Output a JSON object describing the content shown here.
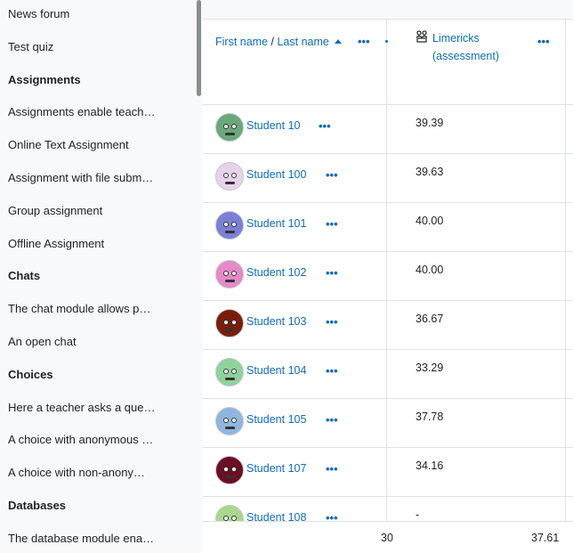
{
  "sidebar": {
    "items": [
      {
        "label": "News forum",
        "section": false
      },
      {
        "label": "Test quiz",
        "section": false
      },
      {
        "label": "Assignments",
        "section": true
      },
      {
        "label": "Assignments enable teach…",
        "section": false
      },
      {
        "label": "Online Text Assignment",
        "section": false
      },
      {
        "label": "Assignment with file subm…",
        "section": false
      },
      {
        "label": "Group assignment",
        "section": false
      },
      {
        "label": "Offline Assignment",
        "section": false
      },
      {
        "label": "Chats",
        "section": true
      },
      {
        "label": "The chat module allows p…",
        "section": false
      },
      {
        "label": "An open chat",
        "section": false
      },
      {
        "label": "Choices",
        "section": true
      },
      {
        "label": "Here a teacher asks a que…",
        "section": false
      },
      {
        "label": "A choice with anonymous …",
        "section": false
      },
      {
        "label": "A choice with non-anony…",
        "section": false
      },
      {
        "label": "Databases",
        "section": true
      },
      {
        "label": "The database module ena…",
        "section": false
      }
    ]
  },
  "table": {
    "name_header": {
      "first": "First name",
      "separator": " / ",
      "last": "Last name"
    },
    "item_header": {
      "name": "Limericks (assessment)",
      "icon": "workshop-icon"
    },
    "rows": [
      {
        "student": "Student 10",
        "grade": "39.39",
        "avatar_color": "#6aa87a"
      },
      {
        "student": "Student 100",
        "grade": "39.63",
        "avatar_color": "#e6d3ea"
      },
      {
        "student": "Student 101",
        "grade": "40.00",
        "avatar_color": "#7b7fd6"
      },
      {
        "student": "Student 102",
        "grade": "40.00",
        "avatar_color": "#e58ac6"
      },
      {
        "student": "Student 103",
        "grade": "36.67",
        "avatar_color": "#7a1e0c"
      },
      {
        "student": "Student 104",
        "grade": "33.29",
        "avatar_color": "#8fd29b"
      },
      {
        "student": "Student 105",
        "grade": "37.78",
        "avatar_color": "#8fb6df"
      },
      {
        "student": "Student 107",
        "grade": "34.16",
        "avatar_color": "#6b0f22"
      },
      {
        "student": "Student 108",
        "grade": "-",
        "avatar_color": "#a9d88d"
      }
    ],
    "footer": {
      "partial_value": "30",
      "average": "37.61"
    }
  },
  "colors": {
    "link": "#0f6cbf",
    "border": "#dee2e6",
    "sidebar_bg": "#f8f9fa"
  }
}
